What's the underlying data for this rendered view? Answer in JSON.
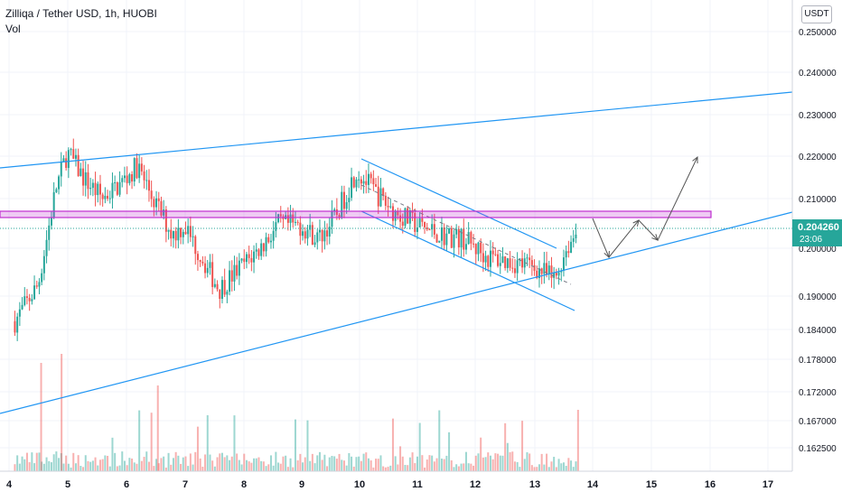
{
  "header": {
    "title": "Zilliqa / Tether USD, 1h, HUOBI",
    "indicator": "Vol",
    "currency_button": "USDT"
  },
  "last_price": {
    "value": "0.204260",
    "countdown": "23:06",
    "color": "#26a69a"
  },
  "colors": {
    "up": "#26a69a",
    "down": "#ef5350",
    "trendline": "#2196f3",
    "resistance_zone": "#c030d0",
    "arrows": "#555555"
  },
  "chart_data": {
    "type": "candlestick",
    "symbol": "Zilliqa / Tether USD",
    "interval": "1h",
    "exchange": "HUOBI",
    "y_ticks": [
      "0.250000",
      "0.240000",
      "0.230000",
      "0.220000",
      "0.210000",
      "0.200000",
      "0.190000",
      "0.184000",
      "0.178000",
      "0.172000",
      "0.167000",
      "0.162500"
    ],
    "x_ticks": [
      "4",
      "5",
      "6",
      "7",
      "8",
      "9",
      "10",
      "11",
      "12",
      "13",
      "14",
      "15",
      "16",
      "17"
    ],
    "last_price": 0.20426,
    "price_anchors": [
      {
        "x": 4.1,
        "close": 0.184
      },
      {
        "x": 4.5,
        "close": 0.192
      },
      {
        "x": 4.8,
        "close": 0.213
      },
      {
        "x": 5.0,
        "close": 0.221
      },
      {
        "x": 5.3,
        "close": 0.215
      },
      {
        "x": 5.6,
        "close": 0.211
      },
      {
        "x": 5.9,
        "close": 0.214
      },
      {
        "x": 6.2,
        "close": 0.218
      },
      {
        "x": 6.5,
        "close": 0.21
      },
      {
        "x": 6.8,
        "close": 0.203
      },
      {
        "x": 7.0,
        "close": 0.205
      },
      {
        "x": 7.3,
        "close": 0.198
      },
      {
        "x": 7.6,
        "close": 0.191
      },
      {
        "x": 7.9,
        "close": 0.195
      },
      {
        "x": 8.3,
        "close": 0.2
      },
      {
        "x": 8.6,
        "close": 0.205
      },
      {
        "x": 9.0,
        "close": 0.205
      },
      {
        "x": 9.3,
        "close": 0.202
      },
      {
        "x": 9.6,
        "close": 0.207
      },
      {
        "x": 9.95,
        "close": 0.217
      },
      {
        "x": 10.3,
        "close": 0.212
      },
      {
        "x": 10.6,
        "close": 0.208
      },
      {
        "x": 11.0,
        "close": 0.205
      },
      {
        "x": 11.4,
        "close": 0.203
      },
      {
        "x": 11.8,
        "close": 0.202
      },
      {
        "x": 12.2,
        "close": 0.198
      },
      {
        "x": 12.6,
        "close": 0.197
      },
      {
        "x": 13.0,
        "close": 0.196
      },
      {
        "x": 13.35,
        "close": 0.193
      },
      {
        "x": 13.55,
        "close": 0.2
      },
      {
        "x": 13.75,
        "close": 0.204
      }
    ]
  },
  "drawings": {
    "upper_trendline": "ascending resistance line",
    "lower_trendline": "ascending support line",
    "channel": "descending channel",
    "zone": "horizontal resistance zone",
    "projection": "projected zig-zag path"
  }
}
